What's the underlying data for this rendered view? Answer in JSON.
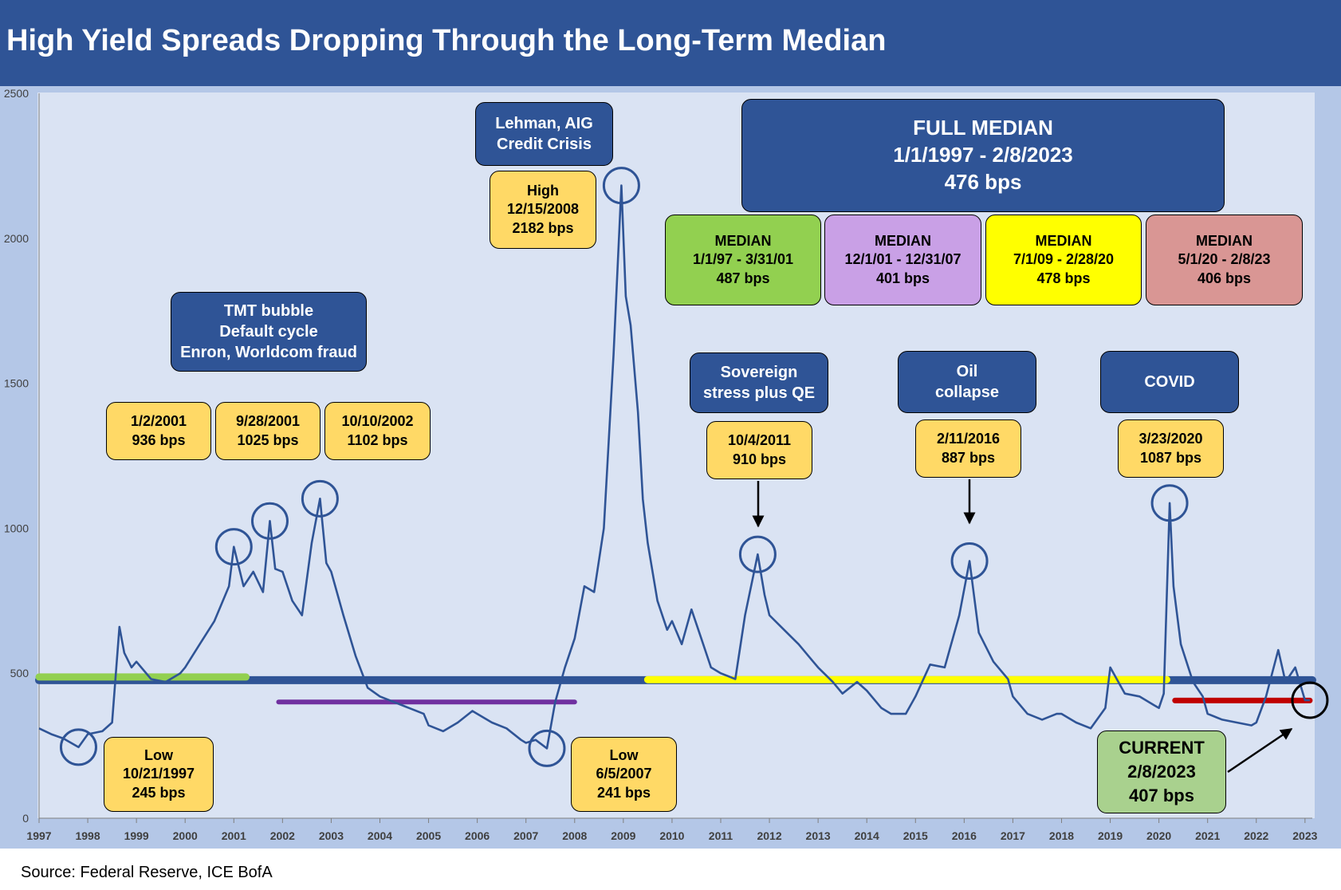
{
  "title": "High Yield Spreads Dropping Through the Long-Term Median",
  "source": "Source: Federal Reserve, ICE BofA",
  "colors": {
    "header": "#2f5496",
    "frame": "#b4c7e7",
    "plot_bg": "#dae3f3",
    "series": "#2f5496",
    "full_median_line": "#2f5496",
    "median_1": "#92d050",
    "median_2": "#7030a0",
    "median_3": "#ffff00",
    "median_4": "#c00000",
    "annotation_dark": "#2f5496",
    "annotation_yellow": "#ffd966",
    "current": "#a9d18e"
  },
  "chart_data": {
    "type": "line",
    "title": "High Yield Spreads Dropping Through the Long-Term Median",
    "xlabel": "",
    "ylabel": "",
    "xlim": [
      1997,
      2023.15
    ],
    "ylim": [
      0,
      2500
    ],
    "yticks": [
      0,
      500,
      1000,
      1500,
      2000,
      2500
    ],
    "xticks": [
      "1997",
      "1998",
      "1999",
      "2000",
      "2001",
      "2002",
      "2003",
      "2004",
      "2005",
      "2006",
      "2007",
      "2008",
      "2009",
      "2010",
      "2011",
      "2012",
      "2013",
      "2014",
      "2015",
      "2016",
      "2017",
      "2018",
      "2019",
      "2020",
      "2021",
      "2022",
      "2023"
    ],
    "grid": false,
    "series": [
      {
        "x": [
          1997.0,
          1997.25,
          1997.5,
          1997.81,
          1998.0,
          1998.3,
          1998.5,
          1998.65,
          1998.75,
          1998.9,
          1999.0,
          1999.3,
          1999.6,
          1999.9,
          2000.0,
          2000.3,
          2000.6,
          2000.9,
          2001.0,
          2001.2,
          2001.4,
          2001.6,
          2001.74,
          2001.85,
          2002.0,
          2002.2,
          2002.4,
          2002.6,
          2002.77,
          2002.9,
          2003.0,
          2003.25,
          2003.5,
          2003.75,
          2004.0,
          2004.3,
          2004.6,
          2004.9,
          2005.0,
          2005.3,
          2005.6,
          2005.9,
          2006.0,
          2006.3,
          2006.6,
          2006.9,
          2007.0,
          2007.2,
          2007.43,
          2007.6,
          2007.8,
          2008.0,
          2008.2,
          2008.4,
          2008.6,
          2008.8,
          2008.96,
          2009.05,
          2009.15,
          2009.3,
          2009.4,
          2009.5,
          2009.7,
          2009.9,
          2010.0,
          2010.2,
          2010.4,
          2010.6,
          2010.8,
          2011.0,
          2011.3,
          2011.5,
          2011.76,
          2011.9,
          2012.0,
          2012.3,
          2012.6,
          2012.9,
          2013.0,
          2013.3,
          2013.5,
          2013.8,
          2014.0,
          2014.3,
          2014.5,
          2014.8,
          2015.0,
          2015.3,
          2015.6,
          2015.9,
          2016.11,
          2016.3,
          2016.6,
          2016.9,
          2017.0,
          2017.3,
          2017.6,
          2017.9,
          2018.0,
          2018.3,
          2018.6,
          2018.9,
          2019.0,
          2019.3,
          2019.6,
          2019.9,
          2020.0,
          2020.1,
          2020.22,
          2020.3,
          2020.45,
          2020.7,
          2020.9,
          2021.0,
          2021.3,
          2021.6,
          2021.9,
          2022.0,
          2022.2,
          2022.45,
          2022.6,
          2022.8,
          2023.0,
          2023.1
        ],
        "values": [
          310,
          290,
          275,
          245,
          290,
          300,
          330,
          660,
          570,
          520,
          540,
          480,
          470,
          500,
          520,
          600,
          680,
          800,
          936,
          800,
          850,
          780,
          1025,
          860,
          850,
          750,
          700,
          950,
          1102,
          880,
          850,
          700,
          560,
          450,
          420,
          400,
          380,
          360,
          320,
          300,
          330,
          370,
          360,
          330,
          310,
          270,
          260,
          270,
          241,
          400,
          520,
          620,
          800,
          780,
          1000,
          1600,
          2182,
          1800,
          1700,
          1400,
          1100,
          950,
          750,
          650,
          680,
          600,
          720,
          620,
          520,
          500,
          480,
          700,
          910,
          770,
          700,
          650,
          600,
          540,
          520,
          470,
          430,
          470,
          440,
          380,
          360,
          360,
          420,
          530,
          520,
          700,
          887,
          640,
          540,
          480,
          420,
          360,
          340,
          360,
          360,
          330,
          310,
          380,
          520,
          430,
          420,
          390,
          380,
          430,
          1087,
          800,
          600,
          470,
          420,
          360,
          340,
          330,
          320,
          330,
          420,
          580,
          470,
          520,
          407,
          407
        ]
      }
    ],
    "reference_lines": [
      {
        "label": "FULL MEDIAN 1/1/1997 - 2/8/2023",
        "value": 476,
        "x": [
          1997,
          2023.15
        ]
      },
      {
        "label": "MEDIAN 1/1/97 - 3/31/01",
        "value": 487,
        "x": [
          1997,
          2001.25
        ]
      },
      {
        "label": "MEDIAN 12/1/01 - 12/31/07",
        "value": 401,
        "x": [
          2001.92,
          2008.0
        ]
      },
      {
        "label": "MEDIAN 7/1/09 - 2/28/20",
        "value": 478,
        "x": [
          2009.5,
          2020.16
        ]
      },
      {
        "label": "MEDIAN 5/1/20 - 2/8/23",
        "value": 406,
        "x": [
          2020.33,
          2023.1
        ]
      }
    ],
    "highlighted_points": [
      {
        "x": 1997.81,
        "y": 245
      },
      {
        "x": 2001.0,
        "y": 936
      },
      {
        "x": 2001.74,
        "y": 1025
      },
      {
        "x": 2002.77,
        "y": 1102
      },
      {
        "x": 2007.43,
        "y": 241
      },
      {
        "x": 2008.96,
        "y": 2182
      },
      {
        "x": 2011.76,
        "y": 910
      },
      {
        "x": 2016.11,
        "y": 887
      },
      {
        "x": 2020.22,
        "y": 1087
      },
      {
        "x": 2023.1,
        "y": 407
      }
    ]
  },
  "annotations": {
    "tmt": [
      "TMT bubble",
      "Default cycle",
      "Enron, Worldcom fraud"
    ],
    "lehman": [
      "Lehman, AIG",
      "Credit Crisis"
    ],
    "sovereign": [
      "Sovereign",
      "stress plus QE"
    ],
    "oil": [
      "Oil",
      "collapse"
    ],
    "covid": [
      "COVID"
    ],
    "full_median": [
      "FULL MEDIAN",
      "1/1/1997 - 2/8/2023",
      "476 bps"
    ],
    "median1": [
      "MEDIAN",
      "1/1/97 - 3/31/01",
      "487 bps"
    ],
    "median2": [
      "MEDIAN",
      "12/1/01 - 12/31/07",
      "401 bps"
    ],
    "median3": [
      "MEDIAN",
      "7/1/09 - 2/28/20",
      "478 bps"
    ],
    "median4": [
      "MEDIAN",
      "5/1/20 - 2/8/23",
      "406 bps"
    ],
    "p2001": [
      "1/2/2001",
      "936 bps"
    ],
    "p2001b": [
      "9/28/2001",
      "1025 bps"
    ],
    "p2002": [
      "10/10/2002",
      "1102 bps"
    ],
    "high2008": [
      "High",
      "12/15/2008",
      "2182 bps"
    ],
    "p2011": [
      "10/4/2011",
      "910 bps"
    ],
    "p2016": [
      "2/11/2016",
      "887 bps"
    ],
    "p2020": [
      "3/23/2020",
      "1087 bps"
    ],
    "low1997": [
      "Low",
      "10/21/1997",
      "245 bps"
    ],
    "low2007": [
      "Low",
      "6/5/2007",
      "241 bps"
    ],
    "current": [
      "CURRENT",
      "2/8/2023",
      "407 bps"
    ]
  }
}
